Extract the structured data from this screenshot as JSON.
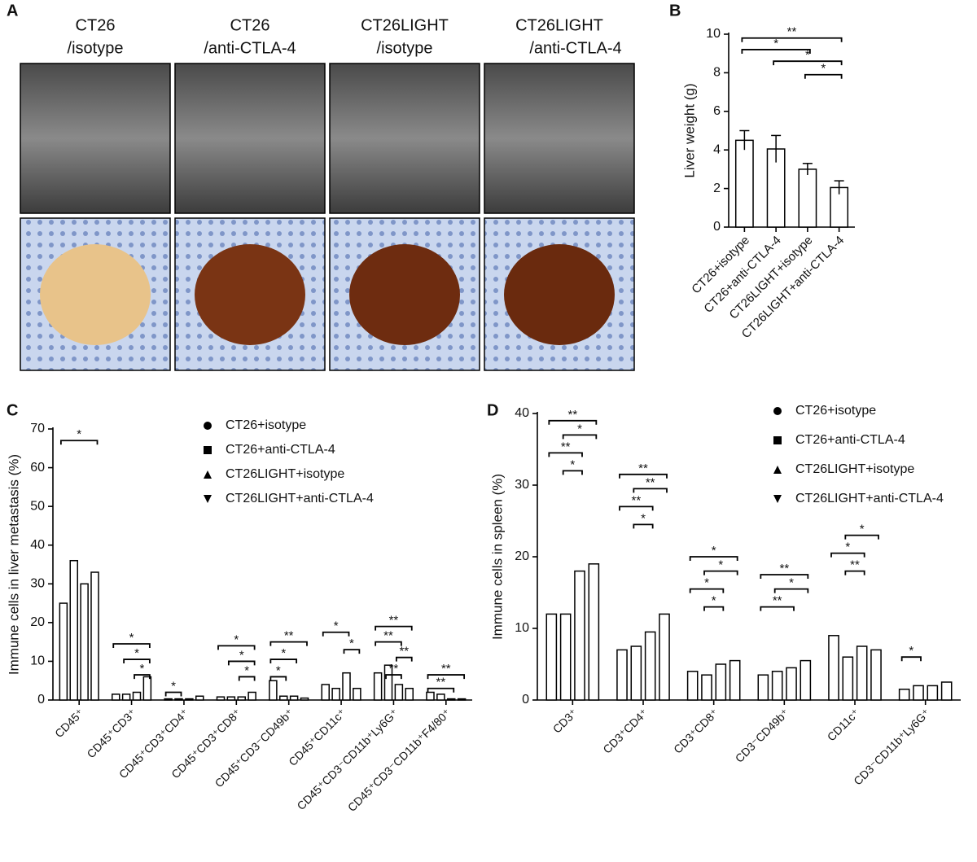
{
  "panel_labels": [
    "A",
    "B",
    "C",
    "D"
  ],
  "panel_a": {
    "columns": [
      {
        "title": [
          "CT26",
          "/isotype"
        ]
      },
      {
        "title": [
          "CT26",
          "/anti-CTLA-4"
        ]
      },
      {
        "title": [
          "CT26LIGHT",
          "/isotype"
        ]
      },
      {
        "title": [
          "CT26LIGHT",
          "/anti-CTLA-4"
        ]
      }
    ]
  },
  "chart_data": [
    {
      "type": "bar",
      "y_label": "Liver weight (g)",
      "categories": [
        "CT26+isotype",
        "CT26+anti-CTLA-4",
        "CT26LIGHT+isotype",
        "CT26LIGHT+anti-CTLA-4"
      ],
      "values": [
        4.5,
        4.05,
        3.0,
        2.05
      ],
      "errors": [
        0.5,
        0.7,
        0.3,
        0.35
      ],
      "color": "#000000",
      "ylim": [
        0,
        10
      ],
      "yticks": [
        0,
        2,
        4,
        6,
        8,
        10
      ],
      "annotations": [
        "**",
        "*",
        "*",
        "*"
      ]
    },
    {
      "type": "bar",
      "y_label": "Immune cells in liver metastasis (%)",
      "categories": [
        "CD45⁺",
        "CD45⁺CD3⁺",
        "CD45⁺CD3⁺CD4⁺",
        "CD45⁺CD3⁺CD8⁺",
        "CD45⁺CD3⁻CD49b⁺",
        "CD45⁺CD11c⁺",
        "CD45⁺CD3⁻CD11b⁺Ly6G⁺",
        "CD45⁺CD3⁻CD11b⁺F4/80⁺"
      ],
      "series": [
        {
          "name": "CT26+isotype",
          "marker": "circle",
          "color": "#000000",
          "values": [
            25,
            1.5,
            0.3,
            0.8,
            5,
            4,
            7,
            2
          ]
        },
        {
          "name": "CT26+anti-CTLA-4",
          "marker": "square",
          "color": "#000000",
          "values": [
            36,
            1.5,
            0.3,
            0.8,
            1,
            3,
            9,
            1.5
          ]
        },
        {
          "name": "CT26LIGHT+isotype",
          "marker": "triangle",
          "color": "#000000",
          "values": [
            30,
            2,
            0.3,
            0.8,
            1,
            7,
            4,
            0.3
          ]
        },
        {
          "name": "CT26LIGHT+anti-CTLA-4",
          "marker": "triangle-down",
          "color": "#000000",
          "values": [
            33,
            6,
            1,
            2,
            0.5,
            3,
            3,
            0.3
          ]
        }
      ],
      "ylim": [
        0,
        70
      ],
      "yticks": [
        0,
        10,
        20,
        30,
        40,
        50,
        60,
        70
      ],
      "annotations": [
        "*",
        "*",
        "*",
        "*",
        "*",
        "*",
        "*",
        "*",
        "**",
        "*",
        "*",
        "*",
        "*",
        "**",
        "**",
        "**",
        "**",
        "**",
        "**"
      ]
    },
    {
      "type": "bar",
      "y_label": "Immune cells in spleen (%)",
      "categories": [
        "CD3⁺",
        "CD3⁺CD4⁺",
        "CD3⁺CD8⁺",
        "CD3⁻CD49b⁺",
        "CD11c⁺",
        "CD3⁻CD11b⁺Ly6G⁺"
      ],
      "series": [
        {
          "name": "CT26+isotype",
          "marker": "circle",
          "color": "#000000",
          "values": [
            12,
            7,
            4,
            3.5,
            9,
            1.5
          ]
        },
        {
          "name": "CT26+anti-CTLA-4",
          "marker": "square",
          "color": "#000000",
          "values": [
            12,
            7.5,
            3.5,
            4,
            6,
            2
          ]
        },
        {
          "name": "CT26LIGHT+isotype",
          "marker": "triangle",
          "color": "#000000",
          "values": [
            18,
            9.5,
            5,
            4.5,
            7.5,
            2
          ]
        },
        {
          "name": "CT26LIGHT+anti-CTLA-4",
          "marker": "triangle-down",
          "color": "#000000",
          "values": [
            19,
            12,
            5.5,
            5.5,
            7,
            2.5
          ]
        }
      ],
      "ylim": [
        0,
        40
      ],
      "yticks": [
        0,
        10,
        20,
        30,
        40
      ],
      "annotations": [
        "**",
        "*",
        "**",
        "*",
        "**",
        "**",
        "**",
        "*",
        "*",
        "*",
        "*",
        "*",
        "**",
        "*",
        "**",
        "*",
        "*",
        "**",
        "*"
      ]
    }
  ]
}
